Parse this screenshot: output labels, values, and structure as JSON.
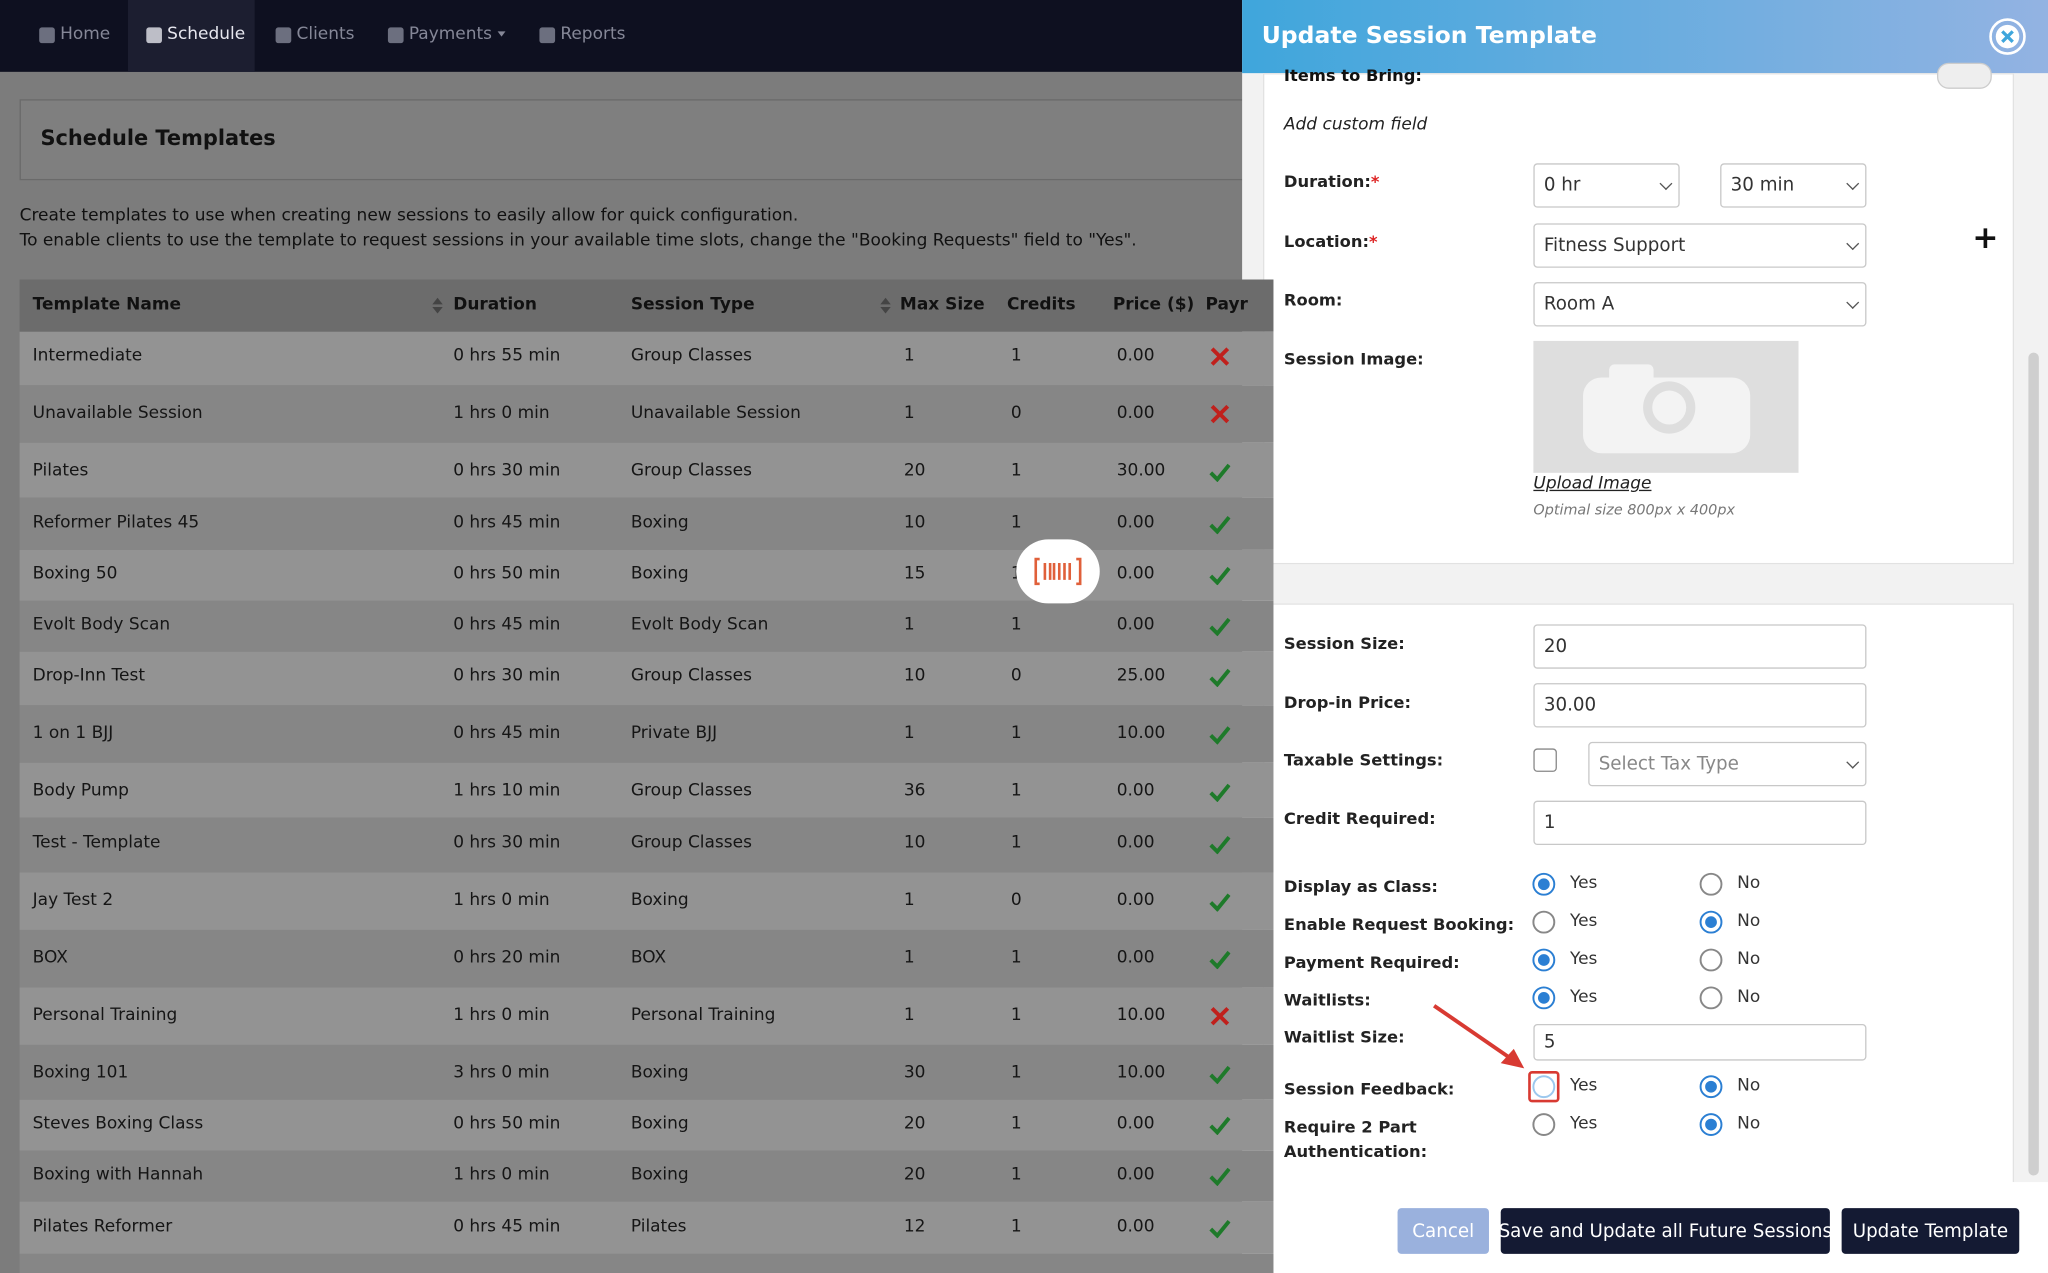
{
  "nav": {
    "items": [
      "Home",
      "Schedule",
      "Clients",
      "Payments",
      "Reports"
    ],
    "active": 1
  },
  "page": {
    "title": "Schedule Templates",
    "description": [
      "Create templates to use when creating new sessions to easily allow for quick configuration.",
      "To enable clients to use the template to request sessions in your available time slots, change the \"Booking Requests\" field to \"Yes\"."
    ]
  },
  "table": {
    "columns": [
      "Template Name",
      "Duration",
      "Session Type",
      "Max Size",
      "Credits",
      "Price ($)",
      "Payr"
    ],
    "rows": [
      [
        "Intermediate",
        "0 hrs 55 min",
        "Group Classes",
        "1",
        "1",
        "0.00"
      ],
      [
        "Unavailable Session",
        "1 hrs 0 min",
        "Unavailable Session",
        "1",
        "0",
        "0.00"
      ],
      [
        "Pilates",
        "0 hrs 30 min",
        "Group Classes",
        "20",
        "1",
        "30.00"
      ],
      [
        "Reformer Pilates 45",
        "0 hrs 45 min",
        "Boxing",
        "10",
        "1",
        "0.00"
      ],
      [
        "Boxing 50",
        "0 hrs 50 min",
        "Boxing",
        "15",
        "1",
        "0.00"
      ],
      [
        "Evolt Body Scan",
        "0 hrs 45 min",
        "Evolt Body Scan",
        "1",
        "1",
        "0.00"
      ],
      [
        "Drop-Inn Test",
        "0 hrs 30 min",
        "Group Classes",
        "10",
        "0",
        "25.00"
      ],
      [
        "1 on 1 BJJ",
        "0 hrs 45 min",
        "Private BJJ",
        "1",
        "1",
        "10.00"
      ],
      [
        "Body Pump",
        "1 hrs 10 min",
        "Group Classes",
        "36",
        "1",
        "0.00"
      ],
      [
        "Test - Template",
        "0 hrs 30 min",
        "Group Classes",
        "10",
        "1",
        "0.00"
      ],
      [
        "Jay Test 2",
        "1 hrs 0 min",
        "Boxing",
        "1",
        "0",
        "0.00"
      ],
      [
        "BOX",
        "0 hrs 20 min",
        "BOX",
        "1",
        "1",
        "0.00"
      ],
      [
        "Personal Training",
        "1 hrs 0 min",
        "Personal Training",
        "1",
        "1",
        "10.00"
      ],
      [
        "Boxing 101",
        "3 hrs 0 min",
        "Boxing",
        "30",
        "1",
        "10.00"
      ],
      [
        "Steves Boxing Class",
        "0 hrs 50 min",
        "Boxing",
        "20",
        "1",
        "0.00"
      ],
      [
        "Boxing with Hannah",
        "1 hrs 0 min",
        "Boxing",
        "20",
        "1",
        "0.00"
      ],
      [
        "Pilates Reformer",
        "0 hrs 45 min",
        "Pilates",
        "12",
        "1",
        "0.00"
      ]
    ],
    "payment_required": [
      false,
      false,
      true,
      true,
      true,
      true,
      true,
      true,
      true,
      true,
      true,
      true,
      false,
      true,
      true,
      true,
      true
    ]
  },
  "panel": {
    "title": "Update Session Template",
    "required_mark": "*",
    "items_to_bring": "Items to Bring:",
    "add_custom_field": "Add custom field",
    "duration": {
      "label": "Duration:",
      "hours": "0 hr",
      "minutes": "30 min"
    },
    "location": {
      "label": "Location:",
      "value": "Fitness Support"
    },
    "room": {
      "label": "Room:",
      "value": "Room A"
    },
    "session_image": {
      "label": "Session Image:",
      "upload": "Upload Image",
      "hint": "Optimal size 800px x 400px"
    },
    "inputs": [
      {
        "label": "Session Size:",
        "value": "20"
      },
      {
        "label": "Drop-in Price:",
        "value": "30.00"
      }
    ],
    "taxable": {
      "label": "Taxable Settings:",
      "placeholder": "Select Tax Type"
    },
    "credit": {
      "label": "Credit Required:",
      "value": "1"
    },
    "radio_options": [
      "Yes",
      "No"
    ],
    "radios": [
      {
        "label": "Display as Class:",
        "selected": 0
      },
      {
        "label": "Enable Request Booking:",
        "selected": 1
      },
      {
        "label": "Payment Required:",
        "selected": 0
      },
      {
        "label": "Waitlists:",
        "selected": 0
      }
    ],
    "waitlist_size": {
      "label": "Waitlist Size:",
      "value": "5"
    },
    "radios2": [
      {
        "label": "Session Feedback:",
        "selected": 1,
        "highlight": 0
      },
      {
        "label": "Require 2 Part Authentication:",
        "selected": 1
      }
    ],
    "buttons": [
      "Cancel",
      "Save and Update all Future Sessions",
      "Update Template"
    ]
  }
}
